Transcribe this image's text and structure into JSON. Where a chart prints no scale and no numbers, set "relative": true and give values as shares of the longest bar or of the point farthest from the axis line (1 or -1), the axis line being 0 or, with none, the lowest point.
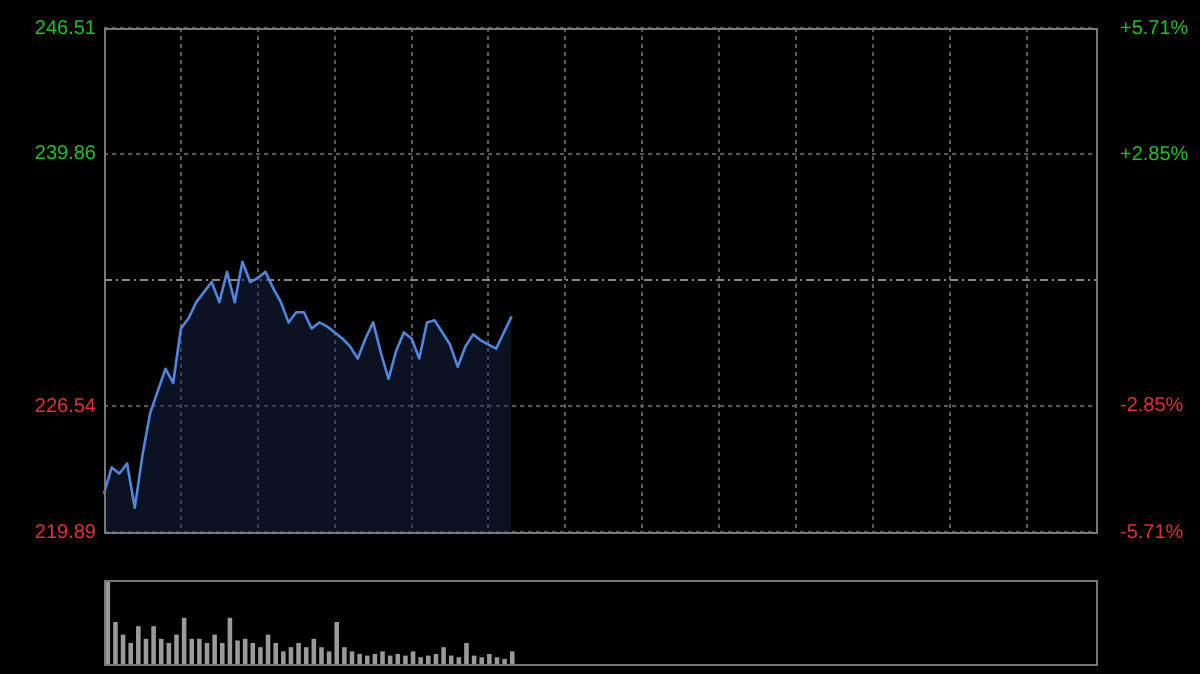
{
  "chart_data": [
    {
      "type": "area",
      "categories": [
        null,
        null,
        null,
        null,
        null,
        null,
        null,
        null,
        null,
        null,
        null,
        null,
        null,
        null,
        null,
        null,
        null,
        null,
        null,
        null,
        null,
        null,
        null,
        null,
        null,
        null,
        null,
        null,
        null,
        null,
        null,
        null,
        null,
        null,
        null,
        null,
        null,
        null,
        null,
        null,
        null,
        null,
        null,
        null,
        null,
        null,
        null,
        null,
        null,
        null,
        null,
        null,
        null,
        null,
        null,
        null,
        null,
        null,
        null,
        null,
        null,
        null,
        null,
        null,
        null,
        null,
        null,
        null,
        null,
        null,
        null,
        null,
        null,
        null,
        null,
        null,
        null,
        null,
        null,
        null,
        null,
        null,
        null,
        null,
        null,
        null,
        null,
        null,
        null,
        null,
        null,
        null,
        null,
        null,
        null,
        null,
        null,
        null,
        null,
        null,
        null,
        null,
        null,
        null,
        null,
        null,
        null,
        null,
        null,
        null,
        null,
        null,
        null,
        null,
        null,
        null,
        null,
        null,
        null,
        null,
        null,
        null,
        null,
        null,
        null,
        null,
        null,
        null,
        null,
        null
      ],
      "series": [
        {
          "color": "#4f86e0",
          "values": [
            221.91,
            223.3,
            222.98,
            223.51,
            221.17,
            223.94,
            226.17,
            227.34,
            228.51,
            227.77,
            230.64,
            231.18,
            232.03,
            232.56,
            233.09,
            232.03,
            233.63,
            232.03,
            234.16,
            233.09,
            233.31,
            233.63,
            232.77,
            232.03,
            230.96,
            231.5,
            231.5,
            230.64,
            230.96,
            230.75,
            230.43,
            230.11,
            229.69,
            229.05,
            230.11,
            230.96,
            229.37,
            227.98,
            229.47,
            230.43,
            230.11,
            229.05,
            230.96,
            231.07,
            230.43,
            229.79,
            228.62,
            229.69,
            230.33,
            230.01,
            229.79,
            229.58,
            230.43,
            231.28,
            null,
            null,
            null,
            null,
            null,
            null,
            null,
            null,
            null,
            null,
            null,
            null,
            null,
            null,
            null,
            null,
            null,
            null,
            null,
            null,
            null,
            null,
            null,
            null,
            null,
            null,
            null,
            null,
            null,
            null,
            null,
            null,
            null,
            null,
            null,
            null,
            null,
            null,
            null,
            null,
            null,
            null,
            null,
            null,
            null,
            null,
            null,
            null,
            null,
            null,
            null,
            null,
            null,
            null,
            null,
            null,
            null,
            null,
            null,
            null,
            null,
            null,
            null,
            null,
            null,
            null,
            null,
            null,
            null,
            null,
            null,
            null,
            null,
            null,
            null,
            null
          ]
        }
      ],
      "ylim": [
        219.89,
        246.51
      ],
      "yticks": [
        219.89,
        226.54,
        239.86,
        246.51
      ],
      "y2lim": [
        -5.71,
        5.71
      ],
      "y2ticks": [
        {
          "value": -5.71,
          "label": "-5.71%"
        },
        {
          "value": -2.85,
          "label": "-2.85%"
        },
        {
          "value": 2.85,
          "label": "+2.85%"
        },
        {
          "value": 5.71,
          "label": "+5.71%"
        }
      ],
      "ref_lines": [
        {
          "axis": "y",
          "value": 233.2,
          "line_style": "dashed"
        }
      ],
      "grid": true,
      "marker": "none",
      "line_style": "solid",
      "tick_labels": "y"
    },
    {
      "type": "bar",
      "relative": true,
      "tick_labels": false,
      "grid": false,
      "categories": [
        null,
        null,
        null,
        null,
        null,
        null,
        null,
        null,
        null,
        null,
        null,
        null,
        null,
        null,
        null,
        null,
        null,
        null,
        null,
        null,
        null,
        null,
        null,
        null,
        null,
        null,
        null,
        null,
        null,
        null,
        null,
        null,
        null,
        null,
        null,
        null,
        null,
        null,
        null,
        null,
        null,
        null,
        null,
        null,
        null,
        null,
        null,
        null,
        null,
        null,
        null,
        null,
        null,
        null,
        null,
        null,
        null,
        null,
        null,
        null,
        null,
        null,
        null,
        null,
        null,
        null,
        null,
        null,
        null,
        null,
        null,
        null,
        null,
        null,
        null,
        null,
        null,
        null,
        null,
        null,
        null,
        null,
        null,
        null,
        null,
        null,
        null,
        null,
        null,
        null,
        null,
        null,
        null,
        null,
        null,
        null,
        null,
        null,
        null,
        null,
        null,
        null,
        null,
        null,
        null,
        null,
        null,
        null,
        null,
        null,
        null,
        null,
        null,
        null,
        null,
        null,
        null,
        null,
        null,
        null,
        null,
        null,
        null,
        null,
        null,
        null,
        null,
        null,
        null,
        null
      ],
      "series": [
        {
          "color": "#9a9a9a",
          "values": [
            1.0,
            0.5,
            0.35,
            0.25,
            0.45,
            0.3,
            0.45,
            0.3,
            0.25,
            0.35,
            0.55,
            0.3,
            0.3,
            0.25,
            0.35,
            0.25,
            0.55,
            0.28,
            0.3,
            0.25,
            0.2,
            0.35,
            0.25,
            0.15,
            0.2,
            0.25,
            0.2,
            0.3,
            0.2,
            0.15,
            0.5,
            0.2,
            0.15,
            0.12,
            0.1,
            0.12,
            0.15,
            0.1,
            0.12,
            0.1,
            0.15,
            0.08,
            0.1,
            0.12,
            0.2,
            0.1,
            0.08,
            0.25,
            0.1,
            0.08,
            0.12,
            0.08,
            0.06,
            0.15,
            null,
            null,
            null,
            null,
            null,
            null,
            null,
            null,
            null,
            null,
            null,
            null,
            null,
            null,
            null,
            null,
            null,
            null,
            null,
            null,
            null,
            null,
            null,
            null,
            null,
            null,
            null,
            null,
            null,
            null,
            null,
            null,
            null,
            null,
            null,
            null,
            null,
            null,
            null,
            null,
            null,
            null,
            null,
            null,
            null,
            null,
            null,
            null,
            null,
            null,
            null,
            null,
            null,
            null,
            null,
            null,
            null,
            null,
            null,
            null,
            null,
            null,
            null,
            null,
            null,
            null,
            null,
            null,
            null,
            null,
            null,
            null,
            null,
            null,
            null,
            null
          ]
        }
      ]
    }
  ]
}
